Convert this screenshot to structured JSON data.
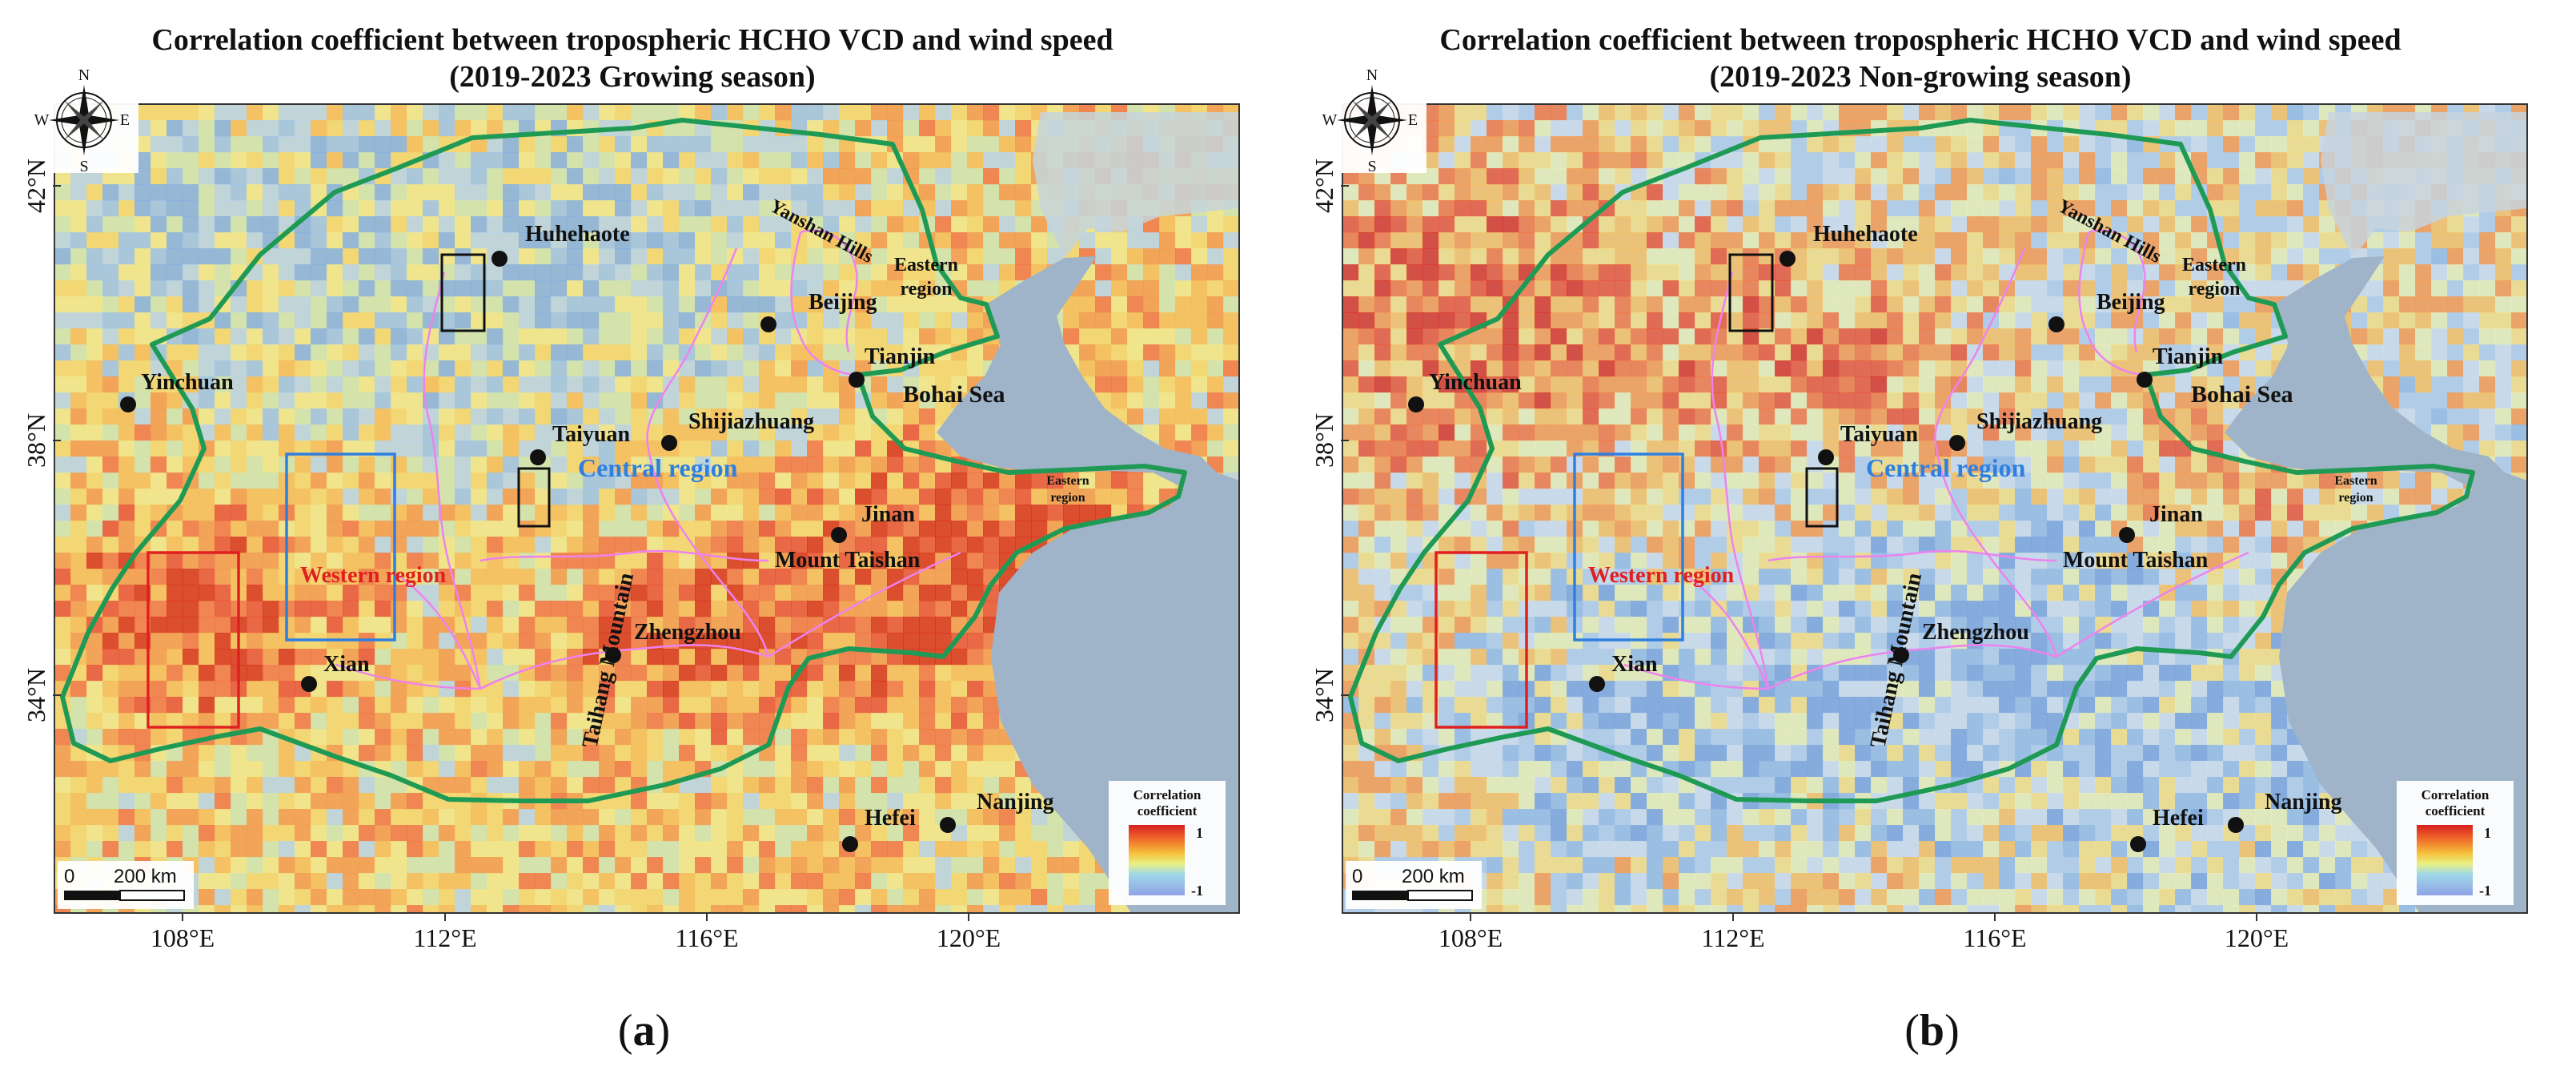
{
  "panels": [
    {
      "id": "a",
      "title_line1": "Correlation coefficient between tropospheric HCHO VCD and wind speed",
      "title_line2": "(2019-2023 Growing season)",
      "caption_letter": "a",
      "theme": "warm",
      "latitude_labels": [
        "42°N",
        "38°N",
        "34°N"
      ],
      "longitude_labels": [
        "108°E",
        "112°E",
        "116°E",
        "120°E"
      ],
      "compass": {
        "n": "N",
        "s": "S",
        "e": "E",
        "w": "W"
      },
      "cities": [
        "Huhehaote",
        "Beijing",
        "Tianjin",
        "Yinchuan",
        "Taiyuan",
        "Shijiazhuang",
        "Jinan",
        "Mount Taishan",
        "Zhengzhou",
        "Xian",
        "Hefei",
        "Nanjing"
      ],
      "features": {
        "yanshan": "Yanshan Hills",
        "taihang": "Taihang Mountain",
        "bohai": "Bohai Sea"
      },
      "regions": {
        "central": "Central region",
        "western": "Western region",
        "eastern_line1": "Eastern",
        "eastern_line2": "region"
      },
      "legend": {
        "title_line1": "Correlation",
        "title_line2": "coefficient",
        "max": "1",
        "min": "-1"
      },
      "scalebar": {
        "zero": "0",
        "distance": "200 km"
      }
    },
    {
      "id": "b",
      "title_line1": "Correlation coefficient between tropospheric HCHO VCD and wind speed",
      "title_line2": "(2019-2023 Non-growing season)",
      "caption_letter": "b",
      "theme": "cool",
      "latitude_labels": [
        "42°N",
        "38°N",
        "34°N"
      ],
      "longitude_labels": [
        "108°E",
        "112°E",
        "116°E",
        "120°E"
      ],
      "compass": {
        "n": "N",
        "s": "S",
        "e": "E",
        "w": "W"
      },
      "cities": [
        "Huhehaote",
        "Beijing",
        "Tianjin",
        "Yinchuan",
        "Taiyuan",
        "Shijiazhuang",
        "Jinan",
        "Mount Taishan",
        "Zhengzhou",
        "Xian",
        "Hefei",
        "Nanjing"
      ],
      "features": {
        "yanshan": "Yanshan Hills",
        "taihang": "Taihang Mountain",
        "bohai": "Bohai Sea"
      },
      "regions": {
        "central": "Central region",
        "western": "Western region",
        "eastern_line1": "Eastern",
        "eastern_line2": "region"
      },
      "legend": {
        "title_line1": "Correlation",
        "title_line2": "coefficient",
        "max": "1",
        "min": "-1"
      },
      "scalebar": {
        "zero": "0",
        "distance": "200 km"
      }
    }
  ],
  "colors": {
    "study_boundary": "#1f9a55",
    "province_lines": "#ee82ee",
    "central_box": "#2f7fe0",
    "western_box": "#e02020",
    "eastern_box": "#111111",
    "sea": "#9fb4c8"
  }
}
